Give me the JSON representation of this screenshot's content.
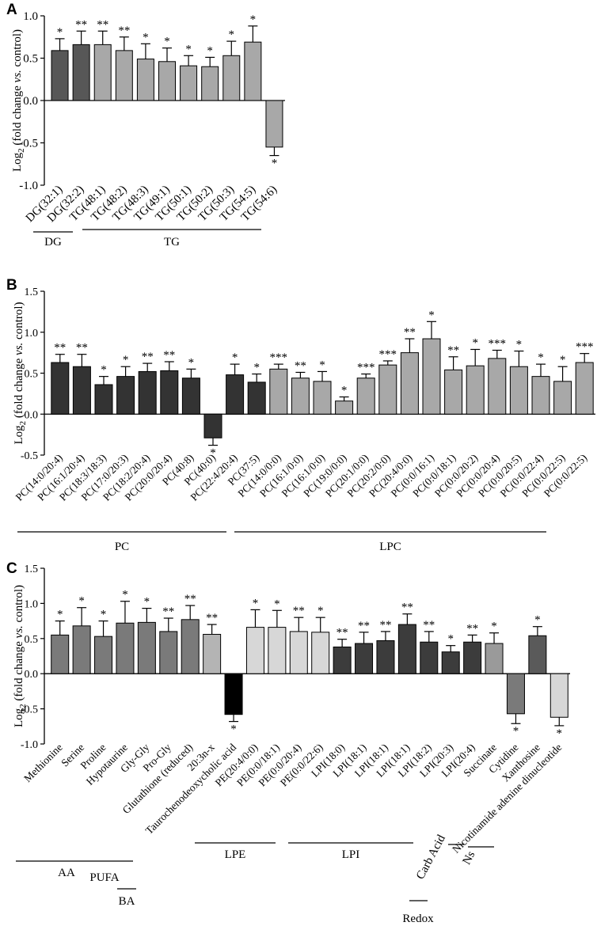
{
  "chart_data": [
    {
      "panel": "A",
      "type": "bar",
      "ylabel_base": "Log",
      "ylabel_sub": "2",
      "ylabel_pre": " (fold change ",
      "ylabel_italic": "vs.",
      "ylabel_post": " control)",
      "ylim": [
        -1.0,
        1.0
      ],
      "yticks": [
        -1.0,
        -0.5,
        0.0,
        0.5,
        1.0
      ],
      "ytick_labels": [
        "-1.0",
        "-0.5",
        "0.0",
        "0.5",
        "1.0"
      ],
      "categories": [
        "DG(32:1)",
        "DG(32:2)",
        "TG(48:1)",
        "TG(48:2)",
        "TG(48:3)",
        "TG(49:1)",
        "TG(50:1)",
        "TG(50:2)",
        "TG(50:3)",
        "TG(54:5)",
        "TG(54:6)"
      ],
      "values": [
        0.59,
        0.66,
        0.66,
        0.59,
        0.49,
        0.46,
        0.41,
        0.4,
        0.53,
        0.69,
        -0.55
      ],
      "errors": [
        0.14,
        0.16,
        0.16,
        0.16,
        0.18,
        0.16,
        0.12,
        0.11,
        0.17,
        0.19,
        0.1
      ],
      "significance": [
        "*",
        "**",
        "**",
        "**",
        "*",
        "*",
        "*",
        "*",
        "*",
        "*",
        "*"
      ],
      "colors": [
        "#575757",
        "#575757",
        "#a8a8a8",
        "#a8a8a8",
        "#a8a8a8",
        "#a8a8a8",
        "#a8a8a8",
        "#a8a8a8",
        "#a8a8a8",
        "#a8a8a8",
        "#a8a8a8"
      ],
      "groups": [
        {
          "label": "DG",
          "from": 0,
          "to": 1
        },
        {
          "label": "TG",
          "from": 2,
          "to": 10
        }
      ]
    },
    {
      "panel": "B",
      "type": "bar",
      "ylabel_base": "Log",
      "ylabel_sub": "2",
      "ylabel_pre": " (fold change ",
      "ylabel_italic": "vs.",
      "ylabel_post": " control)",
      "ylim": [
        -0.5,
        1.5
      ],
      "yticks": [
        -0.5,
        0.0,
        0.5,
        1.0,
        1.5
      ],
      "ytick_labels": [
        "-0.5",
        "0.0",
        "0.5",
        "1.0",
        "1.5"
      ],
      "categories": [
        "PC(14:0/20:4)",
        "PC(16:1/20:4)",
        "PC(18:3/18:3)",
        "PC(17:0/20:3)",
        "PC(18:2/20:4)",
        "PC(20:0/20:4)",
        "PC(40:8)",
        "PC(40:0)",
        "PC(22:4/20:4)",
        "PC(37:5)",
        "PC(14:0/0:0)",
        "PC(16:1/0:0)",
        "PC(16:1/0:0)",
        "PC(19:0/0:0)",
        "PC(20:1/0:0)",
        "PC(20:2/0:0)",
        "PC(20:4/0:0)",
        "PC(0:0/16:1)",
        "PC(0:0/18:1)",
        "PC(0:0/20:2)",
        "PC(0:0/20:4)",
        "PC(0:0/20:5)",
        "PC(0:0/22:4)",
        "PC(0:0/22:5)",
        "PC(0:0/22:5)"
      ],
      "values": [
        0.63,
        0.58,
        0.36,
        0.46,
        0.52,
        0.53,
        0.44,
        -0.29,
        0.48,
        0.39,
        0.55,
        0.44,
        0.4,
        0.16,
        0.44,
        0.6,
        0.75,
        0.92,
        0.54,
        0.59,
        0.68,
        0.58,
        0.46,
        0.4,
        0.63
      ],
      "errors": [
        0.1,
        0.15,
        0.1,
        0.12,
        0.1,
        0.11,
        0.11,
        0.09,
        0.13,
        0.1,
        0.06,
        0.07,
        0.12,
        0.05,
        0.05,
        0.05,
        0.17,
        0.21,
        0.16,
        0.2,
        0.1,
        0.19,
        0.15,
        0.18,
        0.11
      ],
      "significance": [
        "**",
        "**",
        "*",
        "*",
        "**",
        "**",
        "*",
        "*",
        "*",
        "*",
        "***",
        "**",
        "*",
        "*",
        "***",
        "***",
        "**",
        "*",
        "**",
        "*",
        "***",
        "*",
        "*",
        "*",
        "***"
      ],
      "colors": [
        "#333333",
        "#333333",
        "#333333",
        "#333333",
        "#333333",
        "#333333",
        "#333333",
        "#333333",
        "#333333",
        "#333333",
        "#a8a8a8",
        "#a8a8a8",
        "#a8a8a8",
        "#a8a8a8",
        "#a8a8a8",
        "#a8a8a8",
        "#a8a8a8",
        "#a8a8a8",
        "#a8a8a8",
        "#a8a8a8",
        "#a8a8a8",
        "#a8a8a8",
        "#a8a8a8",
        "#a8a8a8",
        "#a8a8a8"
      ],
      "groups": [
        {
          "label": "PC",
          "from": 0,
          "to": 8
        },
        {
          "label": "LPC",
          "from": 9,
          "to": 24
        }
      ]
    },
    {
      "panel": "C",
      "type": "bar",
      "ylabel_base": "Log",
      "ylabel_sub": "2",
      "ylabel_pre": " (fold change ",
      "ylabel_italic": "vs.",
      "ylabel_post": " control)",
      "ylim": [
        -1.0,
        1.5
      ],
      "yticks": [
        -1.0,
        -0.5,
        0.0,
        0.5,
        1.0,
        1.5
      ],
      "ytick_labels": [
        "-1.0",
        "-0.5",
        "0.0",
        "0.5",
        "1.0",
        "1.5"
      ],
      "categories": [
        "Methionine",
        "Serine",
        "Proline",
        "Hypotaurine",
        "Gly-Gly",
        "Pro-Gly",
        "Glutathione (reduced)",
        "20:3n-x",
        "Taurochenodeoxycholic acid",
        "PE(20:4/0:0)",
        "PE(0:0/18:1)",
        "PE(0:0/20:4)",
        "PE(0:0/22:6)",
        "LPI(18:0)",
        "LPI(18:1)",
        "LPI(18:1)",
        "LPI(18:1)",
        "LPI(18:2)",
        "LPI(20:3)",
        "LPI(20:4)",
        "Succinate",
        "Cytidine",
        "Xanthosine",
        "Nicotinamide adenine dinucleotide"
      ],
      "values": [
        0.55,
        0.68,
        0.53,
        0.72,
        0.73,
        0.6,
        0.77,
        0.56,
        -0.58,
        0.66,
        0.66,
        0.6,
        0.59,
        0.38,
        0.43,
        0.47,
        0.7,
        0.45,
        0.31,
        0.45,
        0.43,
        -0.57,
        0.54,
        -0.62
      ],
      "errors": [
        0.2,
        0.26,
        0.22,
        0.31,
        0.2,
        0.19,
        0.2,
        0.14,
        0.1,
        0.25,
        0.24,
        0.2,
        0.21,
        0.11,
        0.16,
        0.13,
        0.15,
        0.15,
        0.09,
        0.1,
        0.15,
        0.14,
        0.13,
        0.12
      ],
      "significance": [
        "*",
        "*",
        "*",
        "*",
        "*",
        "**",
        "**",
        "**",
        "*",
        "*",
        "*",
        "**",
        "*",
        "**",
        "**",
        "**",
        "**",
        "**",
        "*",
        "**",
        "*",
        "*",
        "*",
        "*"
      ],
      "colors": [
        "#7a7a7a",
        "#7a7a7a",
        "#7a7a7a",
        "#7a7a7a",
        "#7a7a7a",
        "#7a7a7a",
        "#7a7a7a",
        "#b4b4b4",
        "#000000",
        "#d7d7d7",
        "#d7d7d7",
        "#d7d7d7",
        "#d7d7d7",
        "#3c3c3c",
        "#3c3c3c",
        "#3c3c3c",
        "#3c3c3c",
        "#3c3c3c",
        "#3c3c3c",
        "#3c3c3c",
        "#9a9a9a",
        "#7a7a7a",
        "#5a5a5a",
        "#d7d7d7"
      ],
      "groups": [
        {
          "label": "AA",
          "from": 0,
          "to": 6
        },
        {
          "label": "PUFA",
          "from": 7,
          "to": 7
        },
        {
          "label": "BA",
          "from": 8,
          "to": 8
        },
        {
          "label": "LPE",
          "from": 9,
          "to": 12
        },
        {
          "label": "LPI",
          "from": 13,
          "to": 19
        },
        {
          "label": "Carb Acid",
          "from": 20,
          "to": 20
        },
        {
          "label": "Ns",
          "from": 21,
          "to": 22
        },
        {
          "label": "Redox",
          "from": 23,
          "to": 23
        }
      ]
    }
  ]
}
